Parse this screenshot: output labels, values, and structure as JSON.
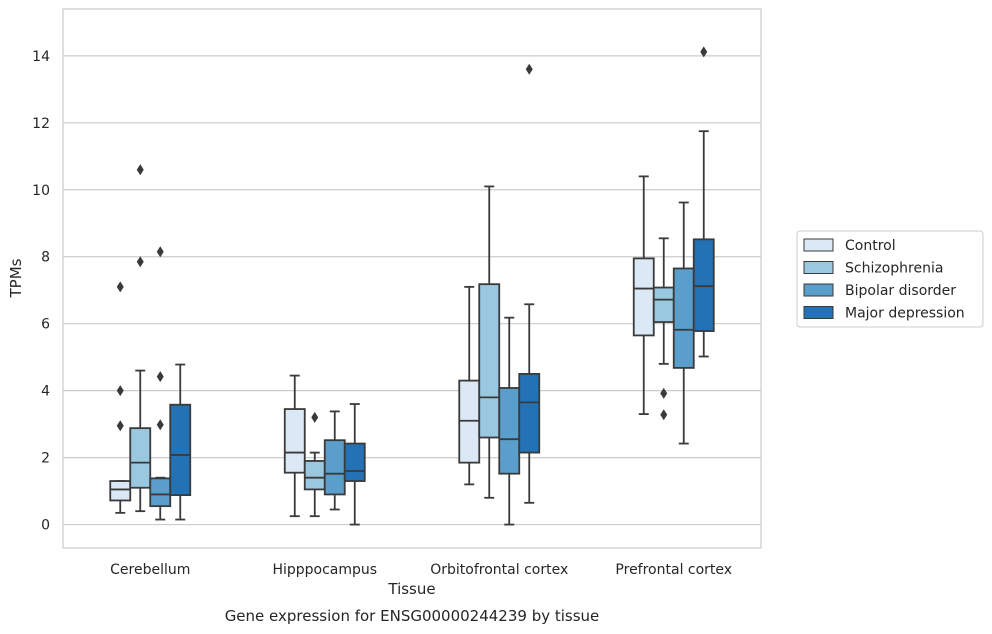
{
  "chart_data": {
    "type": "box",
    "title": "",
    "caption": "Gene expression for ENSG00000244239 by tissue",
    "xlabel": "Tissue",
    "ylabel": "TPMs",
    "ylim": [
      -0.7,
      15.4
    ],
    "yticks": [
      0,
      2,
      4,
      6,
      8,
      10,
      12,
      14
    ],
    "grid": "horizontal",
    "legend_position": "right",
    "categories": [
      "Cerebellum",
      "Hipppocampus",
      "Orbitofrontal cortex",
      "Prefrontal cortex"
    ],
    "series": [
      {
        "name": "Control",
        "color": "#dbe9f6",
        "boxes": [
          {
            "whisker_low": 0.35,
            "q1": 0.72,
            "median": 1.05,
            "q3": 1.3,
            "whisker_high": 1.3,
            "outliers": [
              2.95,
              4.0,
              7.1
            ]
          },
          {
            "whisker_low": 0.25,
            "q1": 1.55,
            "median": 2.15,
            "q3": 3.45,
            "whisker_high": 4.45,
            "outliers": []
          },
          {
            "whisker_low": 1.2,
            "q1": 1.85,
            "median": 3.1,
            "q3": 4.3,
            "whisker_high": 7.1,
            "outliers": []
          },
          {
            "whisker_low": 3.3,
            "q1": 5.65,
            "median": 7.05,
            "q3": 7.95,
            "whisker_high": 10.4,
            "outliers": []
          }
        ]
      },
      {
        "name": "Schizophrenia",
        "color": "#9ac8e0",
        "boxes": [
          {
            "whisker_low": 0.4,
            "q1": 1.1,
            "median": 1.85,
            "q3": 2.88,
            "whisker_high": 4.6,
            "outliers": [
              7.85,
              10.6
            ]
          },
          {
            "whisker_low": 0.25,
            "q1": 1.05,
            "median": 1.4,
            "q3": 1.9,
            "whisker_high": 2.15,
            "outliers": [
              3.2
            ]
          },
          {
            "whisker_low": 0.8,
            "q1": 2.6,
            "median": 3.8,
            "q3": 7.18,
            "whisker_high": 10.1,
            "outliers": []
          },
          {
            "whisker_low": 4.8,
            "q1": 6.05,
            "median": 6.72,
            "q3": 7.08,
            "whisker_high": 8.55,
            "outliers": [
              3.28,
              3.92
            ]
          }
        ]
      },
      {
        "name": "Bipolar disorder",
        "color": "#5a9ecb",
        "boxes": [
          {
            "whisker_low": 0.15,
            "q1": 0.55,
            "median": 0.9,
            "q3": 1.38,
            "whisker_high": 1.4,
            "outliers": [
              2.98,
              4.42,
              8.15
            ]
          },
          {
            "whisker_low": 0.45,
            "q1": 0.9,
            "median": 1.52,
            "q3": 2.52,
            "whisker_high": 3.38,
            "outliers": []
          },
          {
            "whisker_low": 0.0,
            "q1": 1.52,
            "median": 2.55,
            "q3": 4.08,
            "whisker_high": 6.18,
            "outliers": []
          },
          {
            "whisker_low": 2.42,
            "q1": 4.68,
            "median": 5.82,
            "q3": 7.65,
            "whisker_high": 9.62,
            "outliers": []
          }
        ]
      },
      {
        "name": "Major depression",
        "color": "#2272b5",
        "boxes": [
          {
            "whisker_low": 0.15,
            "q1": 0.88,
            "median": 2.08,
            "q3": 3.58,
            "whisker_high": 4.78,
            "outliers": []
          },
          {
            "whisker_low": 0.0,
            "q1": 1.3,
            "median": 1.6,
            "q3": 2.42,
            "whisker_high": 3.6,
            "outliers": []
          },
          {
            "whisker_low": 0.65,
            "q1": 2.15,
            "median": 3.65,
            "q3": 4.5,
            "whisker_high": 6.58,
            "outliers": [
              13.6
            ]
          },
          {
            "whisker_low": 5.02,
            "q1": 5.78,
            "median": 7.12,
            "q3": 8.52,
            "whisker_high": 11.75,
            "outliers": [
              14.12
            ]
          }
        ]
      }
    ],
    "extra_outliers_note": ""
  }
}
